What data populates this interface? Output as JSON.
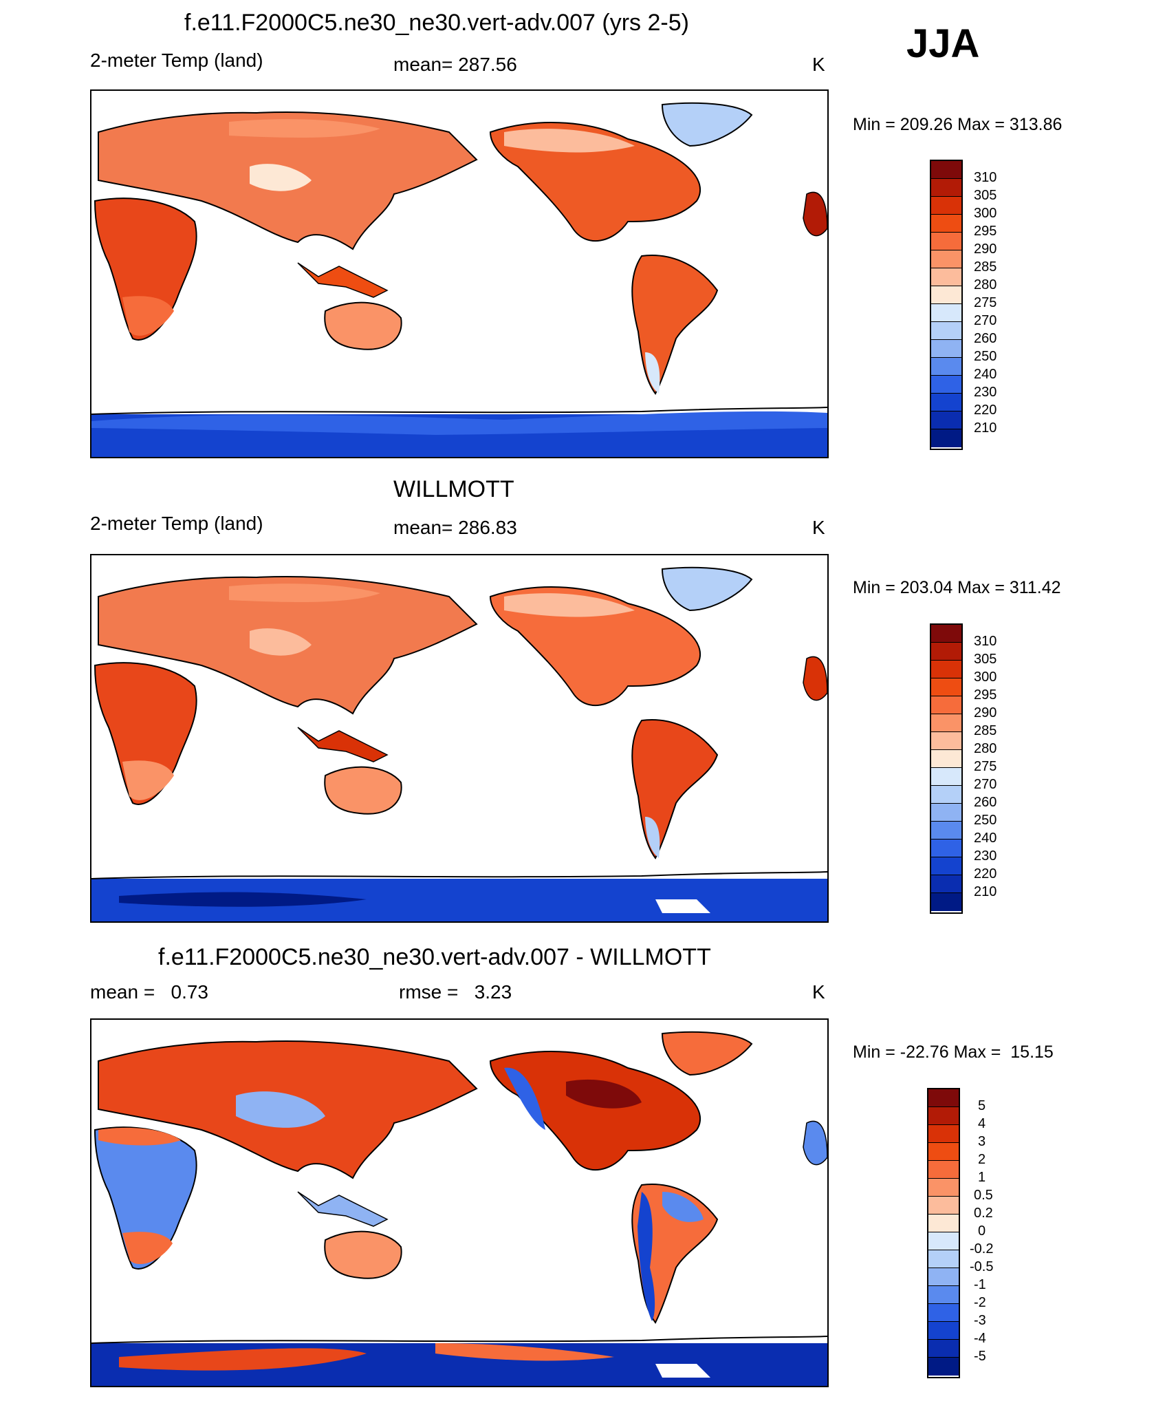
{
  "season": "JJA",
  "panels": [
    {
      "title": "f.e11.F2000C5.ne30_ne30.vert-adv.007 (yrs 2-5)",
      "left": "2-meter Temp (land)",
      "center": "mean= 287.56",
      "right": "K",
      "minmax": "Min = 209.26 Max = 313.86"
    },
    {
      "title": "WILLMOTT",
      "left": "2-meter Temp (land)",
      "center": "mean= 286.83",
      "right": "K",
      "minmax": "Min = 203.04 Max = 311.42"
    },
    {
      "title": "f.e11.F2000C5.ne30_ne30.vert-adv.007 - WILLMOTT",
      "left": "mean =   0.73",
      "center": "rmse =   3.23",
      "right": "K",
      "minmax": "Min = -22.76 Max =  15.15"
    }
  ],
  "colorbars": {
    "temperature": {
      "labels": [
        "310",
        "305",
        "300",
        "295",
        "290",
        "285",
        "280",
        "275",
        "270",
        "260",
        "250",
        "240",
        "230",
        "220",
        "210"
      ],
      "colors": [
        "#7e0a0a",
        "#b21b06",
        "#d93207",
        "#ee4d12",
        "#f66c3b",
        "#fa9367",
        "#fcbc9c",
        "#fde8d5",
        "#d7e8fb",
        "#b4d0f8",
        "#8fb3f3",
        "#5a8aee",
        "#2f62e6",
        "#1443cf",
        "#0a2db0",
        "#001a85"
      ]
    },
    "difference": {
      "labels": [
        "5",
        "4",
        "3",
        "2",
        "1",
        "0.5",
        "0.2",
        "0",
        "-0.2",
        "-0.5",
        "-1",
        "-2",
        "-3",
        "-4",
        "-5"
      ],
      "colors": [
        "#7e0a0a",
        "#b21b06",
        "#d93207",
        "#ee4d12",
        "#f66c3b",
        "#fa9367",
        "#fcbc9c",
        "#fde8d5",
        "#d7e8fb",
        "#b4d0f8",
        "#8fb3f3",
        "#5a8aee",
        "#2f62e6",
        "#1443cf",
        "#0a2db0",
        "#001a85"
      ]
    }
  },
  "chart_data": [
    {
      "type": "heatmap",
      "title": "f.e11.F2000C5.ne30_ne30.vert-adv.007 (yrs 2-5)",
      "variable": "2-meter Temp (land)",
      "units": "K",
      "mean": 287.56,
      "min": 209.26,
      "max": 313.86,
      "levels": [
        210,
        220,
        230,
        240,
        250,
        260,
        270,
        275,
        280,
        285,
        290,
        295,
        300,
        305,
        310
      ]
    },
    {
      "type": "heatmap",
      "title": "WILLMOTT",
      "variable": "2-meter Temp (land)",
      "units": "K",
      "mean": 286.83,
      "min": 203.04,
      "max": 311.42,
      "levels": [
        210,
        220,
        230,
        240,
        250,
        260,
        270,
        275,
        280,
        285,
        290,
        295,
        300,
        305,
        310
      ]
    },
    {
      "type": "heatmap",
      "title": "f.e11.F2000C5.ne30_ne30.vert-adv.007 - WILLMOTT",
      "units": "K",
      "mean": 0.73,
      "rmse": 3.23,
      "min": -22.76,
      "max": 15.15,
      "levels": [
        -5,
        -4,
        -3,
        -2,
        -1,
        -0.5,
        -0.2,
        0,
        0.2,
        0.5,
        1,
        2,
        3,
        4,
        5
      ]
    }
  ]
}
